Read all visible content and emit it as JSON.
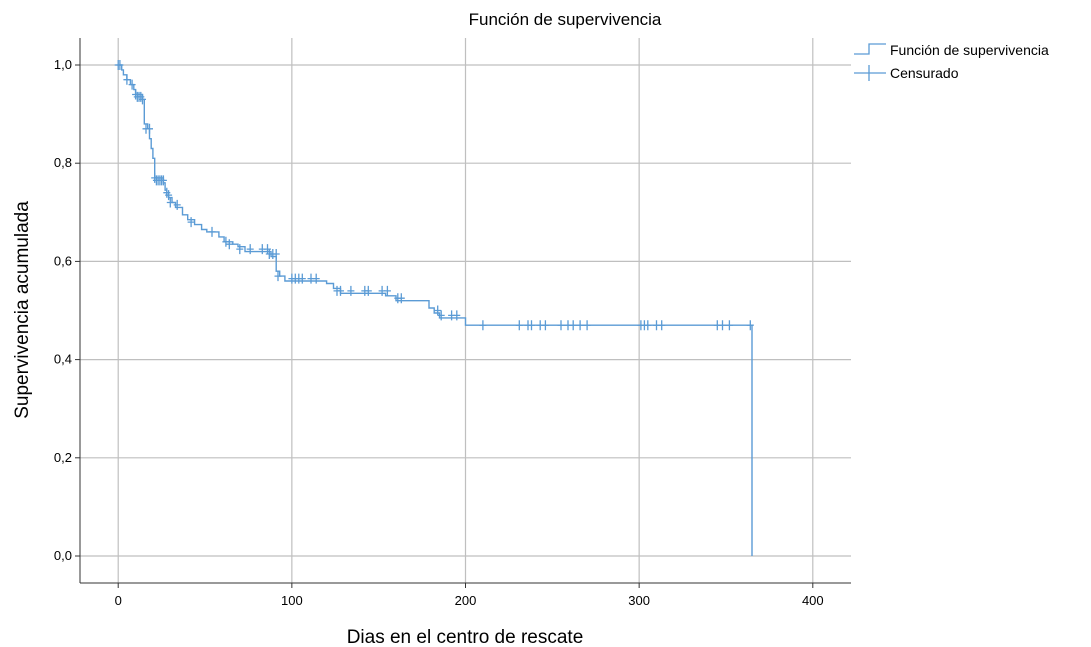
{
  "chart_data": {
    "type": "line",
    "title": "Función de supervivencia",
    "xlabel": "Dias en el centro de rescate",
    "ylabel": "Supervivencia acumulada",
    "xlim": [
      -22,
      422
    ],
    "ylim": [
      -0.055,
      1.055
    ],
    "x_ticks": [
      0,
      100,
      200,
      300,
      400
    ],
    "x_tick_labels": [
      "0",
      "100",
      "200",
      "300",
      "400"
    ],
    "y_ticks": [
      0.0,
      0.2,
      0.4,
      0.6,
      0.8,
      1.0
    ],
    "y_tick_labels": [
      "0,0",
      "0,2",
      "0,4",
      "0,6",
      "0,8",
      "1,0"
    ],
    "grid": true,
    "legend_position": "top-right",
    "colors": {
      "line": "#5b9bd5",
      "grid": "#bfbfbf",
      "axis": "#333333"
    },
    "series": [
      {
        "name": "Función de supervivencia",
        "kind": "step",
        "points": [
          [
            0,
            1.0
          ],
          [
            2,
            0.99
          ],
          [
            3,
            0.98
          ],
          [
            5,
            0.97
          ],
          [
            7,
            0.96
          ],
          [
            9,
            0.95
          ],
          [
            10,
            0.94
          ],
          [
            14,
            0.93
          ],
          [
            15,
            0.88
          ],
          [
            17,
            0.87
          ],
          [
            18,
            0.85
          ],
          [
            19,
            0.83
          ],
          [
            20,
            0.81
          ],
          [
            21,
            0.77
          ],
          [
            26,
            0.76
          ],
          [
            27,
            0.745
          ],
          [
            28,
            0.735
          ],
          [
            29,
            0.73
          ],
          [
            31,
            0.72
          ],
          [
            33,
            0.71
          ],
          [
            37,
            0.695
          ],
          [
            40,
            0.685
          ],
          [
            44,
            0.675
          ],
          [
            48,
            0.665
          ],
          [
            51,
            0.66
          ],
          [
            58,
            0.65
          ],
          [
            61,
            0.64
          ],
          [
            66,
            0.635
          ],
          [
            69,
            0.63
          ],
          [
            73,
            0.62
          ],
          [
            88,
            0.61
          ],
          [
            91,
            0.58
          ],
          [
            93,
            0.57
          ],
          [
            96,
            0.56
          ],
          [
            120,
            0.555
          ],
          [
            124,
            0.545
          ],
          [
            128,
            0.535
          ],
          [
            154,
            0.53
          ],
          [
            160,
            0.52
          ],
          [
            179,
            0.505
          ],
          [
            182,
            0.495
          ],
          [
            185,
            0.485
          ],
          [
            200,
            0.47
          ],
          [
            365,
            0.47
          ],
          [
            365,
            0.0
          ]
        ]
      },
      {
        "name": "Censurado",
        "kind": "censor-marks",
        "points": [
          [
            0,
            1.0
          ],
          [
            1,
            1.0
          ],
          [
            5,
            0.97
          ],
          [
            8,
            0.96
          ],
          [
            10,
            0.94
          ],
          [
            11,
            0.935
          ],
          [
            12,
            0.935
          ],
          [
            13,
            0.935
          ],
          [
            14,
            0.93
          ],
          [
            16,
            0.87
          ],
          [
            18,
            0.87
          ],
          [
            21,
            0.77
          ],
          [
            22,
            0.765
          ],
          [
            23,
            0.765
          ],
          [
            24,
            0.765
          ],
          [
            25,
            0.765
          ],
          [
            26,
            0.765
          ],
          [
            28,
            0.74
          ],
          [
            29,
            0.735
          ],
          [
            30,
            0.72
          ],
          [
            34,
            0.715
          ],
          [
            42,
            0.68
          ],
          [
            54,
            0.66
          ],
          [
            62,
            0.64
          ],
          [
            64,
            0.635
          ],
          [
            70,
            0.625
          ],
          [
            76,
            0.625
          ],
          [
            83,
            0.625
          ],
          [
            86,
            0.625
          ],
          [
            87,
            0.615
          ],
          [
            89,
            0.615
          ],
          [
            91,
            0.615
          ],
          [
            92,
            0.57
          ],
          [
            100,
            0.565
          ],
          [
            102,
            0.565
          ],
          [
            104,
            0.565
          ],
          [
            106,
            0.565
          ],
          [
            111,
            0.565
          ],
          [
            114,
            0.565
          ],
          [
            126,
            0.54
          ],
          [
            128,
            0.54
          ],
          [
            134,
            0.54
          ],
          [
            142,
            0.54
          ],
          [
            144,
            0.54
          ],
          [
            152,
            0.54
          ],
          [
            155,
            0.54
          ],
          [
            161,
            0.525
          ],
          [
            163,
            0.525
          ],
          [
            184,
            0.5
          ],
          [
            186,
            0.49
          ],
          [
            192,
            0.49
          ],
          [
            195,
            0.49
          ],
          [
            210,
            0.47
          ],
          [
            231,
            0.47
          ],
          [
            236,
            0.47
          ],
          [
            238,
            0.47
          ],
          [
            243,
            0.47
          ],
          [
            246,
            0.47
          ],
          [
            255,
            0.47
          ],
          [
            259,
            0.47
          ],
          [
            262,
            0.47
          ],
          [
            266,
            0.47
          ],
          [
            270,
            0.47
          ],
          [
            301,
            0.47
          ],
          [
            303,
            0.47
          ],
          [
            305,
            0.47
          ],
          [
            310,
            0.47
          ],
          [
            313,
            0.47
          ],
          [
            345,
            0.47
          ],
          [
            348,
            0.47
          ],
          [
            352,
            0.47
          ],
          [
            364,
            0.47
          ]
        ]
      }
    ]
  }
}
